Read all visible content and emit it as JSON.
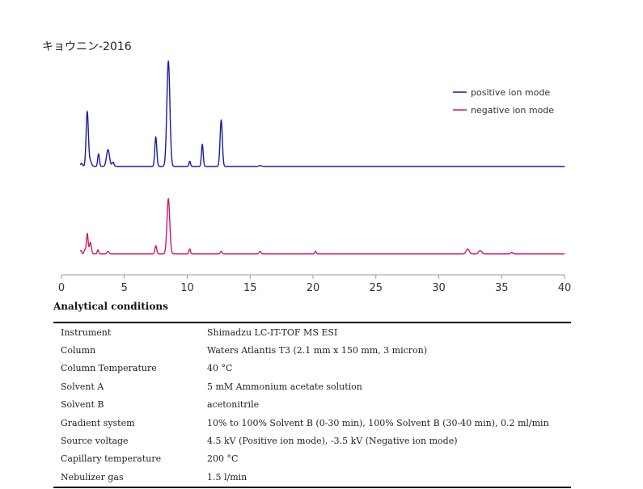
{
  "chart_data": {
    "type": "line",
    "title": "キョウニン-2016",
    "xlabel": "",
    "ylabel": "",
    "xlim": [
      0,
      40
    ],
    "xticks": [
      0,
      5,
      10,
      15,
      20,
      25,
      30,
      35,
      40
    ],
    "legend_position": "top-right",
    "grid": false,
    "series": [
      {
        "name": "positive ion mode",
        "color": "#1a1aa8",
        "peaks": [
          {
            "x": 1.6,
            "h": 0.03,
            "w": 0.08
          },
          {
            "x": 2.05,
            "h": 0.52,
            "w": 0.09
          },
          {
            "x": 2.3,
            "h": 0.05,
            "w": 0.1
          },
          {
            "x": 2.95,
            "h": 0.12,
            "w": 0.07
          },
          {
            "x": 3.7,
            "h": 0.16,
            "w": 0.12
          },
          {
            "x": 4.1,
            "h": 0.04,
            "w": 0.08
          },
          {
            "x": 7.5,
            "h": 0.28,
            "w": 0.08
          },
          {
            "x": 8.5,
            "h": 1.0,
            "w": 0.12
          },
          {
            "x": 10.2,
            "h": 0.05,
            "w": 0.06
          },
          {
            "x": 11.2,
            "h": 0.21,
            "w": 0.07
          },
          {
            "x": 12.7,
            "h": 0.44,
            "w": 0.09
          },
          {
            "x": 15.8,
            "h": 0.01,
            "w": 0.1
          }
        ]
      },
      {
        "name": "negative ion mode",
        "color": "#d11a62",
        "peaks": [
          {
            "x": 1.55,
            "h": 0.04,
            "w": 0.06
          },
          {
            "x": 1.85,
            "h": 0.05,
            "w": 0.06
          },
          {
            "x": 2.05,
            "h": 0.25,
            "w": 0.07
          },
          {
            "x": 2.3,
            "h": 0.14,
            "w": 0.08
          },
          {
            "x": 2.9,
            "h": 0.05,
            "w": 0.06
          },
          {
            "x": 3.7,
            "h": 0.03,
            "w": 0.08
          },
          {
            "x": 7.5,
            "h": 0.1,
            "w": 0.07
          },
          {
            "x": 8.5,
            "h": 0.68,
            "w": 0.11
          },
          {
            "x": 10.2,
            "h": 0.06,
            "w": 0.06
          },
          {
            "x": 12.7,
            "h": 0.03,
            "w": 0.07
          },
          {
            "x": 15.8,
            "h": 0.03,
            "w": 0.07
          },
          {
            "x": 20.2,
            "h": 0.03,
            "w": 0.06
          },
          {
            "x": 32.3,
            "h": 0.06,
            "w": 0.12
          },
          {
            "x": 33.3,
            "h": 0.04,
            "w": 0.12
          },
          {
            "x": 35.8,
            "h": 0.015,
            "w": 0.1
          }
        ]
      }
    ]
  },
  "conditions": {
    "title": "Analytical conditions",
    "rows": [
      {
        "key": "Instrument",
        "value": "Shimadzu LC-IT-TOF MS ESI"
      },
      {
        "key": "Column",
        "value": "Waters Atlantis T3 (2.1 mm x 150 mm, 3 micron)"
      },
      {
        "key": "Column Temperature",
        "value": "40 °C"
      },
      {
        "key": "Solvent A",
        "value": "5 mM Ammonium acetate solution"
      },
      {
        "key": "Solvent B",
        "value": "acetonitrile"
      },
      {
        "key": "Gradient system",
        "value": "10% to 100% Solvent B (0-30 min), 100% Solvent B (30-40 min), 0.2 ml/min"
      },
      {
        "key": "Source voltage",
        "value": "4.5 kV (Positive ion mode), -3.5 kV (Negative ion mode)"
      },
      {
        "key": "Capillary temperature",
        "value": "200 °C"
      },
      {
        "key": "Nebulizer gas",
        "value": "1.5 l/min"
      }
    ]
  }
}
